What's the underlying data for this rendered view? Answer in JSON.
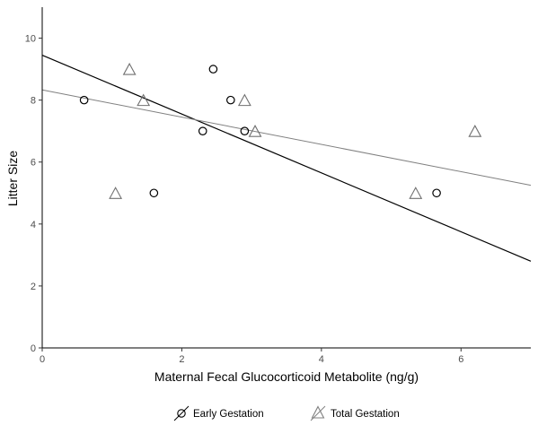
{
  "chart_data": {
    "type": "scatter",
    "xlabel": "Maternal Fecal Glucocorticoid Metabolite (ng/g)",
    "ylabel": "Litter Size",
    "xlim": [
      0,
      7
    ],
    "ylim": [
      0,
      11
    ],
    "x_ticks": [
      "0",
      "2",
      "4",
      "6"
    ],
    "y_ticks": [
      "0",
      "2",
      "4",
      "6",
      "8",
      "10"
    ],
    "grid": false,
    "legend_position": "bottom",
    "series": [
      {
        "name": "Early Gestation",
        "marker": "circle",
        "line_color": "#000000",
        "x": [
          0.6,
          1.6,
          2.3,
          2.45,
          2.7,
          2.9,
          5.65
        ],
        "y": [
          8,
          5,
          7,
          9,
          8,
          7,
          5
        ],
        "fit": {
          "intercept": 9.45,
          "slope": -0.95
        }
      },
      {
        "name": "Total Gestation",
        "marker": "triangle",
        "line_color": "#808080",
        "x": [
          1.05,
          1.25,
          1.45,
          2.9,
          3.05,
          5.35,
          6.2
        ],
        "y": [
          5,
          9,
          8,
          8,
          7,
          5,
          7
        ],
        "fit": {
          "intercept": 8.33,
          "slope": -0.44
        }
      }
    ]
  }
}
